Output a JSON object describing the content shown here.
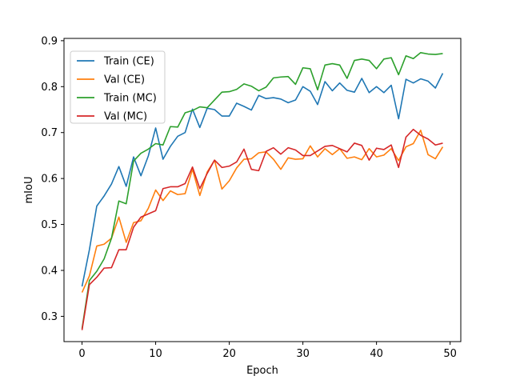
{
  "chart_data": {
    "type": "line",
    "title": "",
    "xlabel": "Epoch",
    "ylabel": "mIoU",
    "xlim": [
      -2.45,
      51.45
    ],
    "ylim": [
      0.245,
      0.905
    ],
    "xticks": [
      0,
      10,
      20,
      30,
      40,
      50
    ],
    "yticks": [
      0.3,
      0.4,
      0.5,
      0.6,
      0.7,
      0.8,
      0.9
    ],
    "grid": false,
    "legend_position": "top-left",
    "x": [
      0,
      1,
      2,
      3,
      4,
      5,
      6,
      7,
      8,
      9,
      10,
      11,
      12,
      13,
      14,
      15,
      16,
      17,
      18,
      19,
      20,
      21,
      22,
      23,
      24,
      25,
      26,
      27,
      28,
      29,
      30,
      31,
      32,
      33,
      34,
      35,
      36,
      37,
      38,
      39,
      40,
      41,
      42,
      43,
      44,
      45,
      46,
      47,
      48,
      49
    ],
    "series": [
      {
        "name": "Train (CE)",
        "color": "#1f77b4",
        "values": [
          0.365,
          0.445,
          0.54,
          0.562,
          0.588,
          0.626,
          0.583,
          0.647,
          0.606,
          0.649,
          0.71,
          0.642,
          0.67,
          0.692,
          0.7,
          0.751,
          0.711,
          0.753,
          0.75,
          0.736,
          0.736,
          0.764,
          0.757,
          0.749,
          0.781,
          0.774,
          0.776,
          0.773,
          0.765,
          0.771,
          0.8,
          0.79,
          0.761,
          0.811,
          0.791,
          0.808,
          0.792,
          0.788,
          0.818,
          0.787,
          0.8,
          0.787,
          0.803,
          0.73,
          0.816,
          0.808,
          0.817,
          0.812,
          0.797,
          0.829
        ]
      },
      {
        "name": "Val (CE)",
        "color": "#ff7f0e",
        "values": [
          0.352,
          0.388,
          0.453,
          0.457,
          0.47,
          0.516,
          0.461,
          0.504,
          0.508,
          0.535,
          0.575,
          0.552,
          0.573,
          0.565,
          0.567,
          0.62,
          0.563,
          0.614,
          0.64,
          0.577,
          0.595,
          0.623,
          0.642,
          0.643,
          0.656,
          0.658,
          0.642,
          0.62,
          0.645,
          0.642,
          0.643,
          0.671,
          0.647,
          0.665,
          0.652,
          0.665,
          0.644,
          0.647,
          0.641,
          0.665,
          0.647,
          0.651,
          0.665,
          0.639,
          0.669,
          0.676,
          0.705,
          0.652,
          0.643,
          0.669
        ]
      },
      {
        "name": "Train (MC)",
        "color": "#2ca02c",
        "values": [
          0.273,
          0.378,
          0.398,
          0.425,
          0.47,
          0.551,
          0.545,
          0.638,
          0.655,
          0.664,
          0.676,
          0.673,
          0.713,
          0.712,
          0.743,
          0.748,
          0.756,
          0.754,
          0.771,
          0.788,
          0.789,
          0.794,
          0.806,
          0.801,
          0.791,
          0.799,
          0.819,
          0.821,
          0.822,
          0.805,
          0.841,
          0.839,
          0.793,
          0.847,
          0.85,
          0.847,
          0.818,
          0.857,
          0.86,
          0.857,
          0.839,
          0.86,
          0.863,
          0.826,
          0.867,
          0.861,
          0.874,
          0.871,
          0.87,
          0.872
        ]
      },
      {
        "name": "Val (MC)",
        "color": "#d62728",
        "values": [
          0.27,
          0.369,
          0.385,
          0.405,
          0.406,
          0.445,
          0.445,
          0.494,
          0.516,
          0.523,
          0.53,
          0.578,
          0.582,
          0.582,
          0.589,
          0.625,
          0.578,
          0.611,
          0.64,
          0.624,
          0.627,
          0.636,
          0.664,
          0.62,
          0.617,
          0.659,
          0.667,
          0.653,
          0.667,
          0.662,
          0.65,
          0.65,
          0.66,
          0.67,
          0.672,
          0.665,
          0.658,
          0.677,
          0.672,
          0.64,
          0.666,
          0.663,
          0.673,
          0.624,
          0.69,
          0.707,
          0.694,
          0.686,
          0.673,
          0.677
        ]
      }
    ]
  }
}
